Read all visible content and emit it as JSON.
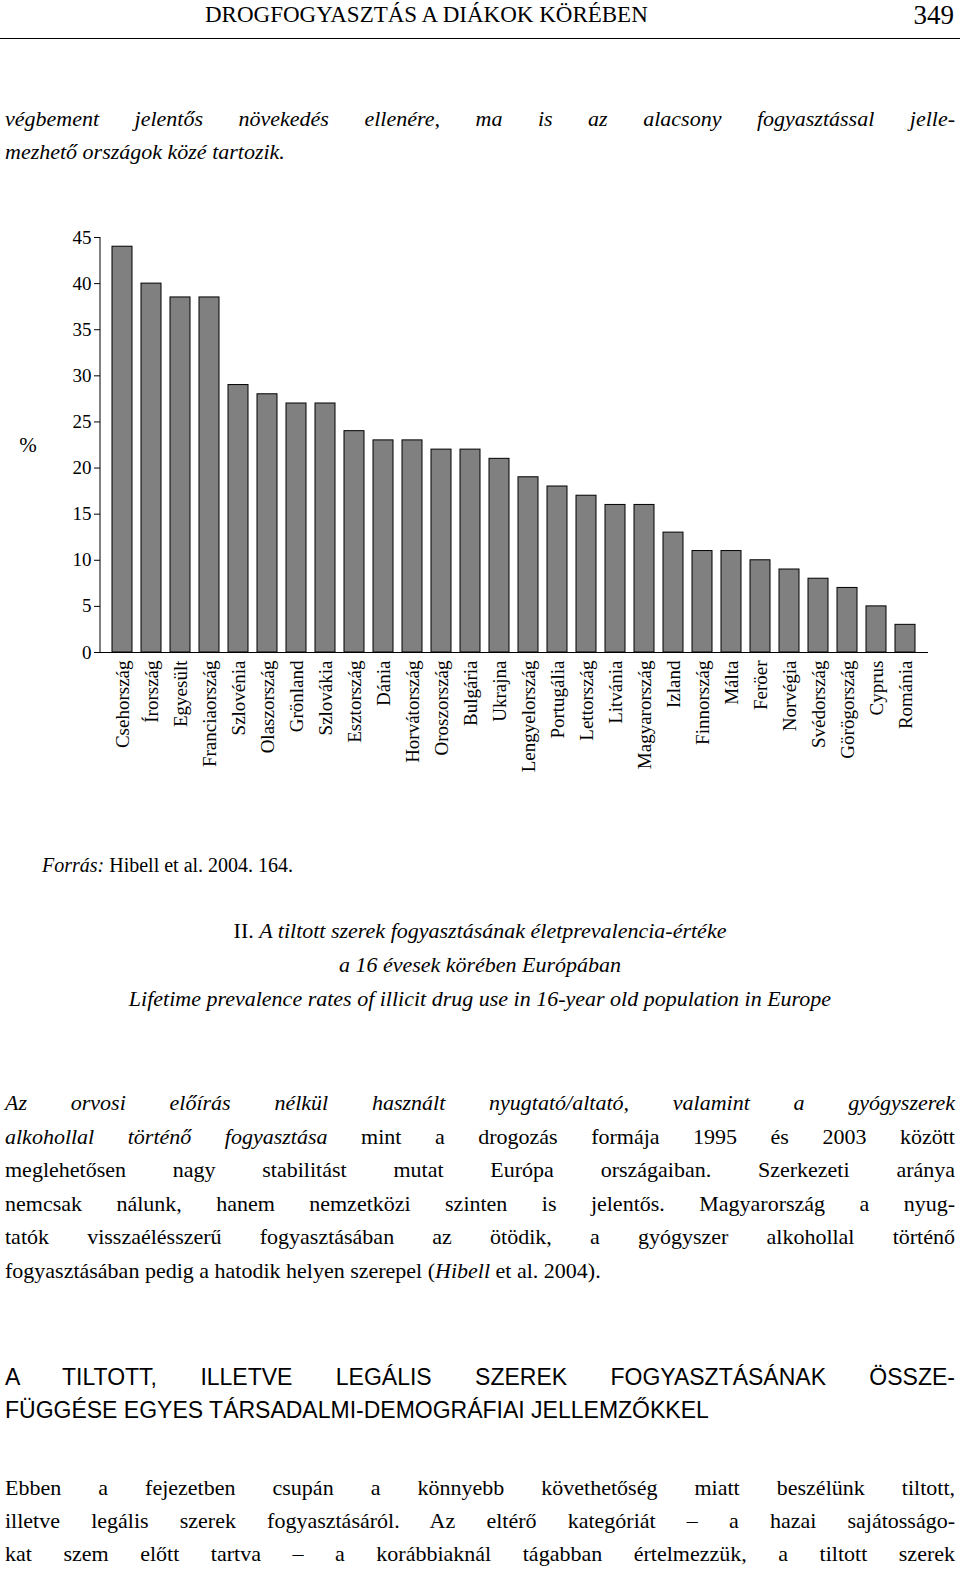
{
  "header": {
    "title": "DROGFOGYASZTÁS A DIÁKOK KÖRÉBEN",
    "page": "349"
  },
  "intro": [
    [
      {
        "text": "végbement jelentős növekedés ellenére, ma is az alacsony fogyasztással jelle-",
        "style": "italic"
      }
    ],
    [
      {
        "text": "mezhető országok közé tartozik.",
        "style": "italic"
      }
    ]
  ],
  "chart_data": {
    "type": "bar",
    "y_label": "%",
    "categories": [
      "Csehország",
      "Írország",
      "Egyesült",
      "Franciaország",
      "Szlovénia",
      "Olaszország",
      "Grönland",
      "Szlovákia",
      "Esztország",
      "Dánia",
      "Horvátország",
      "Oroszország",
      "Bulgária",
      "Ukrajna",
      "Lengyelország",
      "Portugália",
      "Lettország",
      "Litvánia",
      "Magyarország",
      "Izland",
      "Finnország",
      "Málta",
      "Feröer",
      "Norvégia",
      "Svédország",
      "Görögország",
      "Cyprus",
      "Románia"
    ],
    "values": [
      44,
      40,
      38.5,
      38.5,
      29,
      28,
      27,
      27,
      24,
      23,
      23,
      22,
      22,
      21,
      19,
      18,
      17,
      16,
      16,
      13,
      11,
      11,
      10,
      9,
      8,
      7,
      5,
      3
    ],
    "color": "#808080",
    "ylim": [
      0,
      45
    ],
    "yticks": [
      0,
      5,
      10,
      15,
      20,
      25,
      30,
      35,
      40,
      45
    ],
    "grid": false
  },
  "source": [
    {
      "text": "Forrás:",
      "style": "italic"
    },
    {
      "text": " Hibell et al. 2004. 164.",
      "style": "normal"
    }
  ],
  "caption": [
    [
      {
        "text": "II. ",
        "style": "normal"
      },
      {
        "text": "A tiltott szerek fogyasztásának életprevalencia-értéke",
        "style": "italic"
      }
    ],
    [
      {
        "text": "a 16 évesek körében Európában",
        "style": "italic"
      }
    ],
    [
      {
        "text": "Lifetime prevalence rates of illicit drug use in 16-year old population in Europe",
        "style": "italic"
      }
    ]
  ],
  "paragraph_1": [
    [
      {
        "text": "Az orvosi előírás nélkül használt nyugtató/altató, valamint a gyógyszerek",
        "style": "italic"
      }
    ],
    [
      {
        "text": "alkohollal történő fogyasztása",
        "style": "italic"
      },
      {
        "text": " mint a drogozás formája 1995 és 2003 között",
        "style": "normal"
      }
    ],
    [
      {
        "text": "meglehetősen nagy stabilitást mutat Európa országaiban. Szerkezeti aránya",
        "style": "normal"
      }
    ],
    [
      {
        "text": "nemcsak nálunk, hanem nemzetközi szinten is jelentős. Magyarország a nyug-",
        "style": "normal"
      }
    ],
    [
      {
        "text": "tatók visszaélésszerű fogyasztásában az ötödik, a gyógyszer alkohollal történő",
        "style": "normal"
      }
    ],
    [
      {
        "text": "fogyasztásában pedig a hatodik helyen szerepel (",
        "style": "normal"
      },
      {
        "text": "Hibell",
        "style": "italic"
      },
      {
        "text": " et al. 2004).",
        "style": "normal"
      }
    ]
  ],
  "section_heading": [
    "A TILTOTT, ILLETVE LEGÁLIS SZEREK FOGYASZTÁSÁNAK ÖSSZE-",
    "FÜGGÉSE EGYES TÁRSADALMI-DEMOGRÁFIAI JELLEMZŐKKEL"
  ],
  "paragraph_2": [
    [
      {
        "text": "Ebben a fejezetben csupán a könnyebb követhetőség miatt beszélünk tiltott,",
        "style": "normal"
      }
    ],
    [
      {
        "text": "illetve legális szerek fogyasztásáról. Az eltérő kategóriát – a hazai sajátosságo-",
        "style": "normal"
      }
    ],
    [
      {
        "text": "kat szem előtt tartva – a korábbiaknál tágabban értelmezzük, a tiltott szerek",
        "style": "normal"
      }
    ]
  ]
}
